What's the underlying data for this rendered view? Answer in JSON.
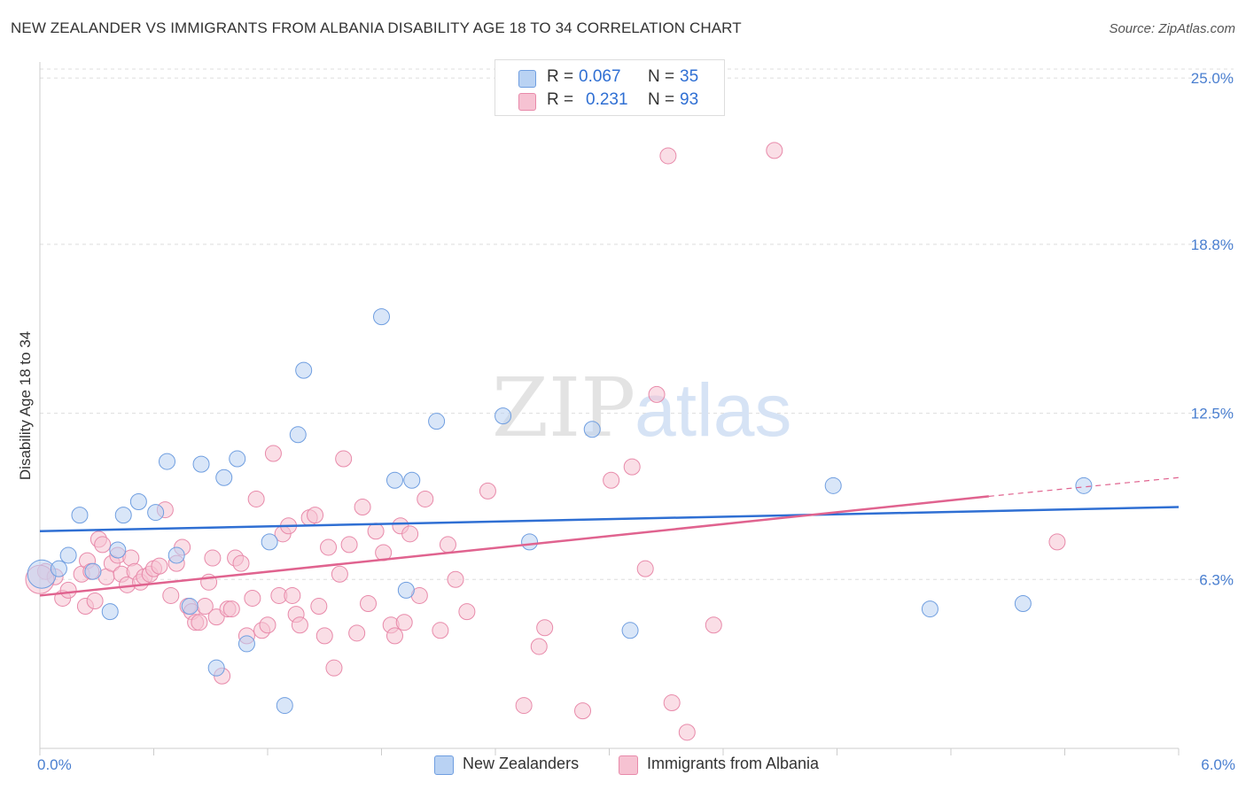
{
  "header": {
    "title": "NEW ZEALANDER VS IMMIGRANTS FROM ALBANIA DISABILITY AGE 18 TO 34 CORRELATION CHART",
    "source": "Source: ZipAtlas.com"
  },
  "watermark": {
    "zip": "ZIP",
    "atlas": "atlas"
  },
  "legend_top": {
    "r_label": "R =",
    "n_label": "N =",
    "rows": [
      {
        "r": "0.067",
        "n": "35"
      },
      {
        "r": "0.231",
        "n": "93"
      }
    ]
  },
  "colors": {
    "series1_fill": "#b9d2f3",
    "series1_stroke": "#6f9ee0",
    "series1_line": "#2f6fd3",
    "series2_fill": "#f6c2d2",
    "series2_stroke": "#e88aaa",
    "series2_line": "#e0638f",
    "tick_label": "#4a7fd0",
    "grid": "#dddddd"
  },
  "chart_data": {
    "type": "scatter",
    "title": "NEW ZEALANDER VS IMMIGRANTS FROM ALBANIA DISABILITY AGE 18 TO 34 CORRELATION CHART",
    "xlabel": "",
    "ylabel": "Disability Age 18 to 34",
    "xlim": [
      0,
      6
    ],
    "ylim": [
      0,
      25.6
    ],
    "x_tick_labels": [
      "0.0%",
      "6.0%"
    ],
    "y_ticks": [
      6.3,
      12.5,
      18.8,
      25.0
    ],
    "y_tick_labels": [
      "6.3%",
      "12.5%",
      "18.8%",
      "25.0%"
    ],
    "grid": "horizontal dashed",
    "legend": "top-center and bottom",
    "series": [
      {
        "name": "New Zealanders",
        "r": 0.067,
        "n": 35,
        "trend": {
          "x": [
            0,
            6
          ],
          "y": [
            8.1,
            9.0
          ]
        },
        "points": [
          [
            0.01,
            6.5
          ],
          [
            0.1,
            6.7
          ],
          [
            0.15,
            7.2
          ],
          [
            0.21,
            8.7
          ],
          [
            0.28,
            6.6
          ],
          [
            0.41,
            7.4
          ],
          [
            0.44,
            8.7
          ],
          [
            0.52,
            9.2
          ],
          [
            0.61,
            8.8
          ],
          [
            0.67,
            10.7
          ],
          [
            0.72,
            7.2
          ],
          [
            0.79,
            5.3
          ],
          [
            0.85,
            10.6
          ],
          [
            0.93,
            3.0
          ],
          [
            0.97,
            10.1
          ],
          [
            1.04,
            10.8
          ],
          [
            1.09,
            3.9
          ],
          [
            1.21,
            7.7
          ],
          [
            1.29,
            1.6
          ],
          [
            1.36,
            11.7
          ],
          [
            1.39,
            14.1
          ],
          [
            1.8,
            16.1
          ],
          [
            1.87,
            10.0
          ],
          [
            1.93,
            5.9
          ],
          [
            1.96,
            10.0
          ],
          [
            2.09,
            12.2
          ],
          [
            2.44,
            12.4
          ],
          [
            2.58,
            7.7
          ],
          [
            2.91,
            11.9
          ],
          [
            3.11,
            4.4
          ],
          [
            4.18,
            9.8
          ],
          [
            4.69,
            5.2
          ],
          [
            5.18,
            5.4
          ],
          [
            5.5,
            9.8
          ],
          [
            0.37,
            5.1
          ]
        ]
      },
      {
        "name": "Immigrants from Albania",
        "r": 0.231,
        "n": 93,
        "trend": {
          "x": [
            0,
            5.0
          ],
          "y": [
            5.7,
            9.4
          ]
        },
        "trend_dashed": {
          "x": [
            5.0,
            6.0
          ],
          "y": [
            9.4,
            10.1
          ]
        },
        "points": [
          [
            0.03,
            6.6
          ],
          [
            0.08,
            6.4
          ],
          [
            0.12,
            5.6
          ],
          [
            0.15,
            5.9
          ],
          [
            0.22,
            6.5
          ],
          [
            0.24,
            5.3
          ],
          [
            0.25,
            7.0
          ],
          [
            0.27,
            6.6
          ],
          [
            0.29,
            5.5
          ],
          [
            0.31,
            7.8
          ],
          [
            0.33,
            7.6
          ],
          [
            0.35,
            6.4
          ],
          [
            0.38,
            6.9
          ],
          [
            0.41,
            7.2
          ],
          [
            0.43,
            6.5
          ],
          [
            0.46,
            6.1
          ],
          [
            0.48,
            7.1
          ],
          [
            0.5,
            6.6
          ],
          [
            0.53,
            6.2
          ],
          [
            0.55,
            6.4
          ],
          [
            0.58,
            6.5
          ],
          [
            0.6,
            6.7
          ],
          [
            0.63,
            6.8
          ],
          [
            0.66,
            8.9
          ],
          [
            0.69,
            5.7
          ],
          [
            0.72,
            6.9
          ],
          [
            0.75,
            7.5
          ],
          [
            0.78,
            5.3
          ],
          [
            0.8,
            5.1
          ],
          [
            0.82,
            4.7
          ],
          [
            0.84,
            4.7
          ],
          [
            0.87,
            5.3
          ],
          [
            0.89,
            6.2
          ],
          [
            0.91,
            7.1
          ],
          [
            0.93,
            4.9
          ],
          [
            0.96,
            2.7
          ],
          [
            0.99,
            5.2
          ],
          [
            1.01,
            5.2
          ],
          [
            1.03,
            7.1
          ],
          [
            1.06,
            6.9
          ],
          [
            1.09,
            4.2
          ],
          [
            1.12,
            5.6
          ],
          [
            1.14,
            9.3
          ],
          [
            1.17,
            4.4
          ],
          [
            1.2,
            4.6
          ],
          [
            1.23,
            11.0
          ],
          [
            1.26,
            5.7
          ],
          [
            1.28,
            8.0
          ],
          [
            1.31,
            8.3
          ],
          [
            1.33,
            5.7
          ],
          [
            1.35,
            5.0
          ],
          [
            1.37,
            4.6
          ],
          [
            1.42,
            8.6
          ],
          [
            1.45,
            8.7
          ],
          [
            1.47,
            5.3
          ],
          [
            1.5,
            4.2
          ],
          [
            1.52,
            7.5
          ],
          [
            1.55,
            3.0
          ],
          [
            1.58,
            6.5
          ],
          [
            1.6,
            10.8
          ],
          [
            1.63,
            7.6
          ],
          [
            1.67,
            4.3
          ],
          [
            1.7,
            9.0
          ],
          [
            1.73,
            5.4
          ],
          [
            1.77,
            8.1
          ],
          [
            1.81,
            7.3
          ],
          [
            1.85,
            4.6
          ],
          [
            1.87,
            4.2
          ],
          [
            1.9,
            8.3
          ],
          [
            1.92,
            4.7
          ],
          [
            1.95,
            8.0
          ],
          [
            2.0,
            5.7
          ],
          [
            2.03,
            9.3
          ],
          [
            2.11,
            4.4
          ],
          [
            2.15,
            7.6
          ],
          [
            2.19,
            6.3
          ],
          [
            2.25,
            5.1
          ],
          [
            2.36,
            9.6
          ],
          [
            2.55,
            1.6
          ],
          [
            2.63,
            3.8
          ],
          [
            2.66,
            4.5
          ],
          [
            2.86,
            1.4
          ],
          [
            3.01,
            10.0
          ],
          [
            3.12,
            10.5
          ],
          [
            3.19,
            6.7
          ],
          [
            3.25,
            13.2
          ],
          [
            3.31,
            22.1
          ],
          [
            3.33,
            1.7
          ],
          [
            3.41,
            0.6
          ],
          [
            3.55,
            4.6
          ],
          [
            3.87,
            22.3
          ],
          [
            5.36,
            7.7
          ],
          [
            0.0,
            6.3
          ]
        ]
      }
    ]
  },
  "legend_bottom": [
    "New Zealanders",
    "Immigrants from Albania"
  ]
}
